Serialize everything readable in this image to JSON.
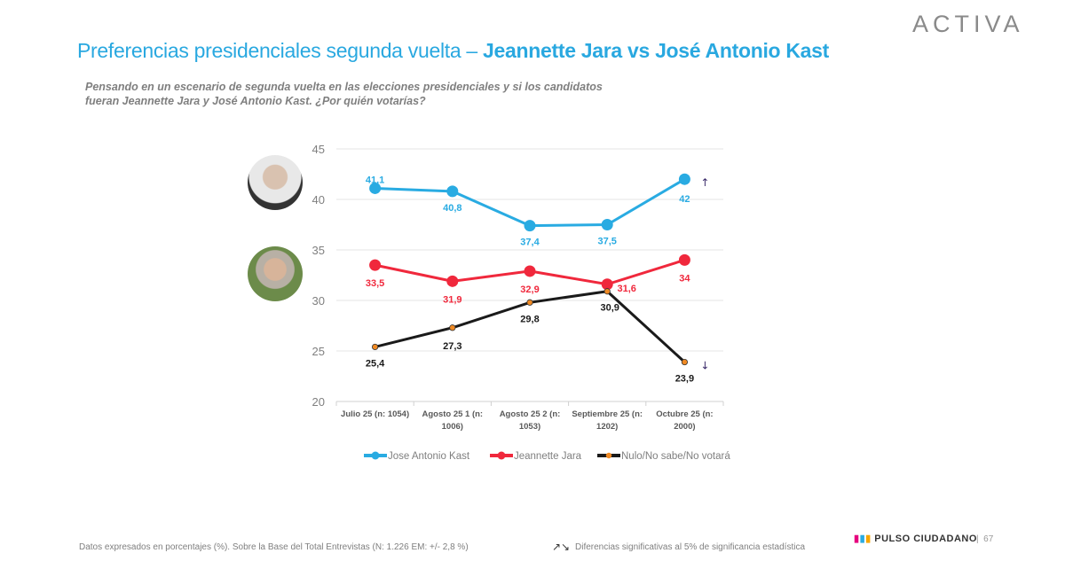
{
  "header": {
    "title_part1": "Preferencias presidenciales segunda vuelta – ",
    "title_part2": "Jeannette Jara vs José Antonio Kast",
    "logo": "ACTIVA"
  },
  "question": "Pensando en un escenario de segunda vuelta en las elecciones presidenciales y si los candidatos fueran Jeannette Jara y José Antonio Kast. ¿Por quién votarías?",
  "chart_data": {
    "type": "line",
    "categories": [
      [
        "Julio 25 (n: 1054)"
      ],
      [
        "Agosto 25 1 (n:",
        "1006)"
      ],
      [
        "Agosto 25 2 (n:",
        "1053)"
      ],
      [
        "Septiembre 25 (n:",
        "1202)"
      ],
      [
        "Octubre 25 (n:",
        "2000)"
      ]
    ],
    "ylim": [
      20,
      45
    ],
    "yticks": [
      20,
      25,
      30,
      35,
      40,
      45
    ],
    "grid": true,
    "legend": "bottom",
    "series": [
      {
        "name": "Jose Antonio Kast",
        "values": [
          41.1,
          40.8,
          37.4,
          37.5,
          42
        ],
        "labels": [
          "41,1",
          "40,8",
          "37,4",
          "37,5",
          "42"
        ],
        "color": "#29abe2",
        "marker": "large"
      },
      {
        "name": "Jeannette Jara",
        "values": [
          33.5,
          31.9,
          32.9,
          31.6,
          34
        ],
        "labels": [
          "33,5",
          "31,9",
          "32,9",
          "31,6",
          "34"
        ],
        "color": "#f0283c",
        "marker": "large"
      },
      {
        "name": "Nulo/No sabe/No votará",
        "values": [
          25.4,
          27.3,
          29.8,
          30.9,
          23.9
        ],
        "labels": [
          "25,4",
          "27,3",
          "29,8",
          "30,9",
          "23,9"
        ],
        "color": "#1a1a1a",
        "marker": "small-orange"
      }
    ],
    "annotations": [
      {
        "series": "Jose Antonio Kast",
        "category": 4,
        "text": "↑"
      },
      {
        "series": "Nulo/No sabe/No votará",
        "category": 4,
        "text": "↓"
      }
    ]
  },
  "footer": {
    "note": "Datos expresados en porcentajes (%). Sobre la Base del Total Entrevistas (N: 1.226  EM: +/- 2,8 %)",
    "sig_icon": "↗↘",
    "sig": "Diferencias  significativas  al 5% de significancia estadística",
    "brand": "PULSO CIUDADANO",
    "page": "67"
  }
}
